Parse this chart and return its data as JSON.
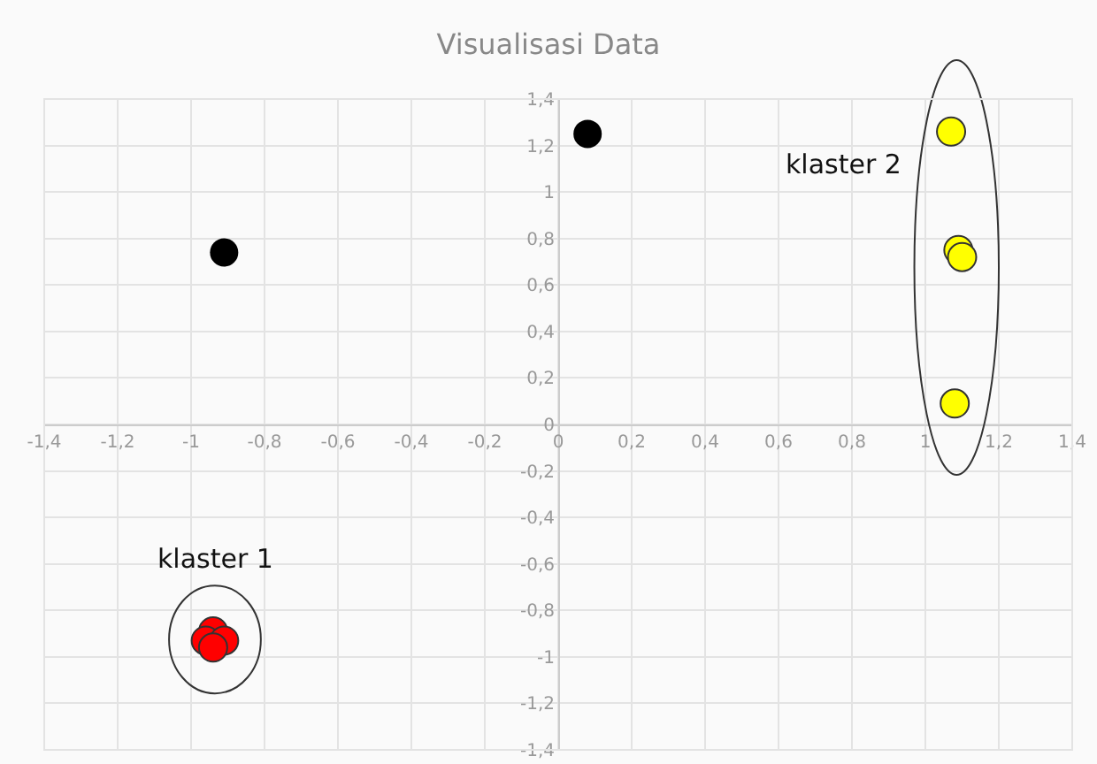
{
  "chart_data": {
    "type": "scatter",
    "title": "Visualisasi Data",
    "xlim": [
      -1.4,
      1.4
    ],
    "ylim": [
      -1.4,
      1.4
    ],
    "xticks": [
      {
        "value": -1.4,
        "label": "-1,4"
      },
      {
        "value": -1.2,
        "label": "-1,2"
      },
      -1,
      {
        "value": -0.8,
        "label": "-0,8"
      },
      {
        "value": -0.6,
        "label": "-0,6"
      },
      {
        "value": -0.4,
        "label": "-0,4"
      },
      {
        "value": -0.2,
        "label": "-0,2"
      },
      0,
      {
        "value": 0.2,
        "label": "0,2"
      },
      {
        "value": 0.4,
        "label": "0,4"
      },
      {
        "value": 0.6,
        "label": "0,6"
      },
      {
        "value": 0.8,
        "label": "0,8"
      },
      1,
      {
        "value": 1.2,
        "label": "1,2"
      },
      {
        "value": 1.4,
        "label": "1,4"
      }
    ],
    "yticks": [
      {
        "value": -1.4,
        "label": "-1,4"
      },
      {
        "value": -1.2,
        "label": "-1,2"
      },
      -1,
      {
        "value": -0.8,
        "label": "-0,8"
      },
      {
        "value": -0.6,
        "label": "-0,6"
      },
      {
        "value": -0.4,
        "label": "-0,4"
      },
      {
        "value": -0.2,
        "label": "-0,2"
      },
      0,
      {
        "value": 0.2,
        "label": "0,2"
      },
      {
        "value": 0.4,
        "label": "0,4"
      },
      {
        "value": 0.6,
        "label": "0,6"
      },
      {
        "value": 0.8,
        "label": "0,8"
      },
      1,
      {
        "value": 1.2,
        "label": "1,2"
      },
      {
        "value": 1.4,
        "label": "1,4"
      }
    ],
    "grid": true,
    "marker": "circle",
    "legend": false,
    "series": [
      {
        "color": "#000000",
        "x": [
          -0.91,
          0.08
        ],
        "values": [
          0.74,
          1.25
        ]
      },
      {
        "name": "klaster 1",
        "color": "#ff0000",
        "x": [
          -0.94,
          -0.96,
          -0.91,
          -0.94
        ],
        "values": [
          -0.89,
          -0.93,
          -0.93,
          -0.96
        ]
      },
      {
        "name": "klaster 2",
        "color": "#ffff00",
        "x": [
          1.07,
          1.09,
          1.1,
          1.08
        ],
        "values": [
          1.26,
          0.75,
          0.72,
          0.09
        ]
      }
    ]
  }
}
